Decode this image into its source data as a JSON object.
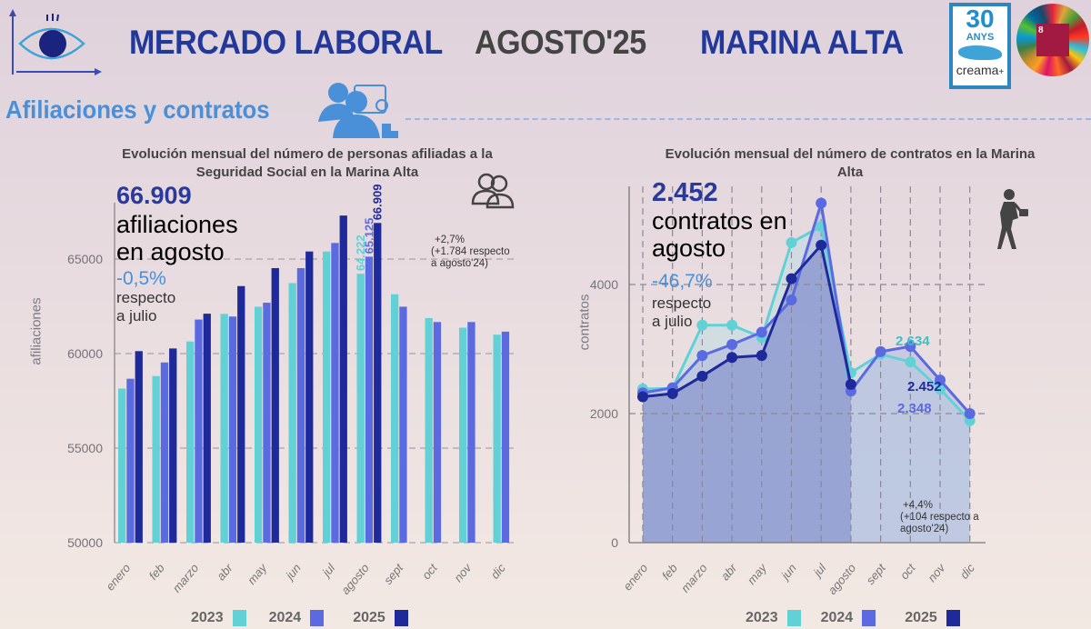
{
  "header": {
    "title_part1": "MERCADO LABORAL",
    "title_part2": "AGOSTO'25",
    "title_part3": "MARINA ALTA",
    "logo_creama": "30 ANYS creama+ 30 ANYS FENT COMARCA",
    "logo_ods": "8 TRABAJO DECENTE Y CRECIMIENTO ECONÓMICO"
  },
  "section_title": "Afiliaciones y contratos",
  "colors": {
    "y2023": "#62d1d6",
    "y2024": "#5b6ae0",
    "y2025": "#1f2a9a",
    "accent": "#4a90d9",
    "title": "#23399a"
  },
  "legend": [
    {
      "label": "2023"
    },
    {
      "label": "2024"
    },
    {
      "label": "2025"
    }
  ],
  "afiliaciones": {
    "title_line1": "Evolución mensual del número de personas afiliadas a la",
    "title_line2": "Seguridad Social en la Marina Alta",
    "headline_value": "66.909",
    "headline_line1": "afiliaciones",
    "headline_line2": "en agosto",
    "change_pct": "-0,5%",
    "change_line1": "respecto",
    "change_line2": "a julio",
    "note_line1": "+2,7%",
    "note_line2": "(+1.784 respecto",
    "note_line3": "a agosto'24)",
    "bar_labels": [
      "64.222",
      "65.125",
      "66.909"
    ]
  },
  "contratos": {
    "title_line1": "Evolución mensual del número de contratos en la Marina",
    "title_line2": "Alta",
    "headline_value": "2.452",
    "headline_line1": "contratos en",
    "headline_line2": "agosto",
    "change_pct": "-46,7%",
    "change_line1": "respecto",
    "change_line2": "a julio",
    "note_line1": "+4,4%",
    "note_line2": "(+104 respecto a",
    "note_line3": "agosto'24)",
    "point_labels": [
      "2.634",
      "2.452",
      "2.348"
    ]
  },
  "chart_data": [
    {
      "type": "bar",
      "ylabel": "afiliaciones",
      "ylim": [
        50000,
        67500
      ],
      "yticks": [
        50000,
        55000,
        60000,
        65000
      ],
      "grid": "horizontal dashed",
      "legend": "bottom",
      "categories": [
        "enero",
        "feb",
        "marzo",
        "abr",
        "may",
        "jun",
        "jul",
        "agosto",
        "sept",
        "oct",
        "nov",
        "dic"
      ],
      "series": [
        {
          "name": "2023",
          "values": [
            58150,
            58810,
            60640,
            62100,
            62480,
            63730,
            65400,
            64222,
            63140,
            61880,
            61370,
            61000
          ]
        },
        {
          "name": "2024",
          "values": [
            58670,
            59530,
            61800,
            61960,
            62690,
            64520,
            65850,
            65125,
            62480,
            61670,
            61670,
            61160
          ]
        },
        {
          "name": "2025",
          "values": [
            60130,
            60270,
            62110,
            63570,
            64520,
            65400,
            67300,
            66909,
            null,
            null,
            null,
            null
          ]
        }
      ]
    },
    {
      "type": "line",
      "ylabel": "contratos",
      "ylim": [
        0,
        5400
      ],
      "yticks": [
        0,
        2000,
        4000
      ],
      "grid": "dashed both",
      "legend": "bottom",
      "categories": [
        "enero",
        "feb",
        "marzo",
        "abr",
        "may",
        "jun",
        "jul",
        "agosto",
        "sept",
        "oct",
        "nov",
        "dic"
      ],
      "series": [
        {
          "name": "2023",
          "values": [
            2380,
            2390,
            3370,
            3370,
            3180,
            4650,
            4900,
            2634,
            2920,
            2800,
            2380,
            1890
          ]
        },
        {
          "name": "2024",
          "values": [
            2320,
            2400,
            2900,
            3070,
            3260,
            3760,
            5260,
            2348,
            2960,
            3040,
            2520,
            2000
          ]
        },
        {
          "name": "2025",
          "values": [
            2260,
            2310,
            2580,
            2870,
            2900,
            4090,
            4610,
            2452,
            null,
            null,
            null,
            null
          ]
        }
      ]
    }
  ]
}
